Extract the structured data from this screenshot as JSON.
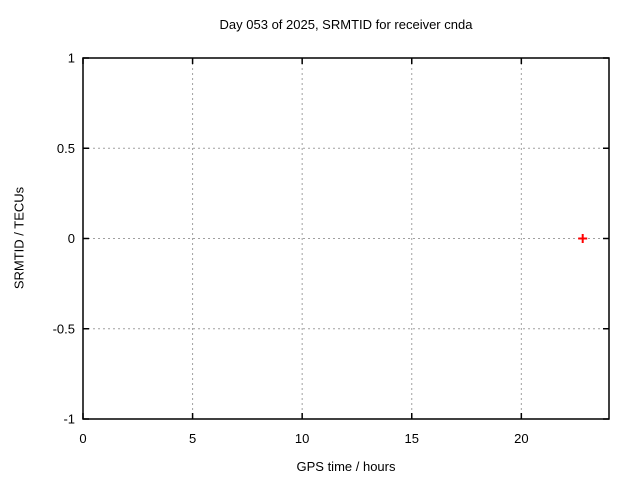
{
  "chart_data": {
    "type": "scatter",
    "title": "Day 053 of 2025, SRMTID for receiver cnda",
    "xlabel": "GPS time / hours",
    "ylabel": "SRMTID / TECUs",
    "xlim": [
      0,
      24
    ],
    "ylim": [
      -1,
      1
    ],
    "x_tick_values": [
      0,
      5,
      10,
      15,
      20
    ],
    "x_tick_labels": [
      "0",
      "5",
      "10",
      "15",
      "20"
    ],
    "y_tick_values": [
      1,
      0.5,
      0,
      -0.5,
      -1
    ],
    "y_tick_labels": [
      "1",
      "0.5",
      "0",
      "-0.5",
      "-1"
    ],
    "grid": true,
    "legend": "none",
    "series": [
      {
        "name": "SRMTID",
        "marker": "plus",
        "color": "#ff0000",
        "points": [
          {
            "x": 22.8,
            "y": 0.0
          }
        ]
      }
    ],
    "colors": {
      "background": "#ffffff",
      "border": "#000000",
      "grid": "#a0a0a0",
      "text": "#000000",
      "marker": "#ff0000"
    }
  }
}
